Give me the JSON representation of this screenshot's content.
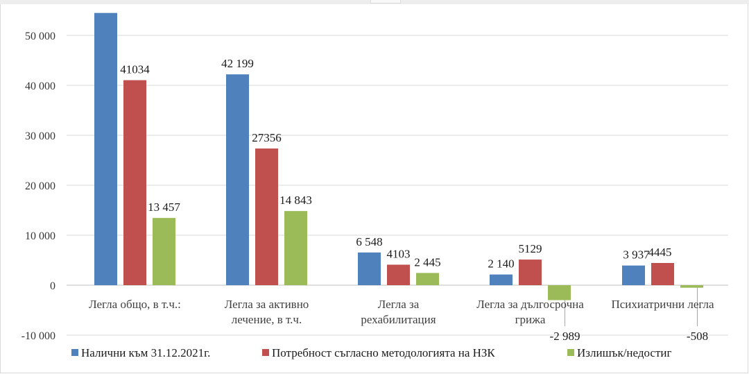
{
  "chart_data": {
    "type": "bar",
    "title": "",
    "xlabel": "",
    "ylabel": "",
    "ylim": [
      -10000,
      55000
    ],
    "yticks": [
      -10000,
      0,
      10000,
      20000,
      30000,
      40000,
      50000
    ],
    "ytick_labels": [
      "-10 000",
      "0",
      "10 000",
      "20 000",
      "30 000",
      "40 000",
      "50 000"
    ],
    "grid": true,
    "legend_position": "bottom",
    "categories": [
      [
        "Легла общо, в т.ч.:"
      ],
      [
        "Легла за активно",
        "лечение, в т.ч."
      ],
      [
        "Легла за",
        "рехабилитация"
      ],
      [
        "Легла за дългосрочна",
        "грижа"
      ],
      [
        "Психиатрични легла"
      ]
    ],
    "series": [
      {
        "name": "Налични към 31.12.2021г.",
        "color": "#4f81bd",
        "values": [
          54491,
          42199,
          6548,
          2140,
          3937
        ],
        "labels": [
          "",
          "42 199",
          "6 548",
          "2 140",
          "3 937"
        ]
      },
      {
        "name": "Потребност съгласно методологията на НЗК",
        "color": "#c0504d",
        "values": [
          41034,
          27356,
          4103,
          5129,
          4445
        ],
        "labels": [
          "41034",
          "27356",
          "4103",
          "5129",
          "4445"
        ]
      },
      {
        "name": "Излишък/недостиг",
        "color": "#9bbb59",
        "values": [
          13457,
          14843,
          2445,
          -2989,
          -508
        ],
        "labels": [
          "13 457",
          "14 843",
          "2 445",
          "-2 989",
          "-508"
        ]
      }
    ]
  }
}
